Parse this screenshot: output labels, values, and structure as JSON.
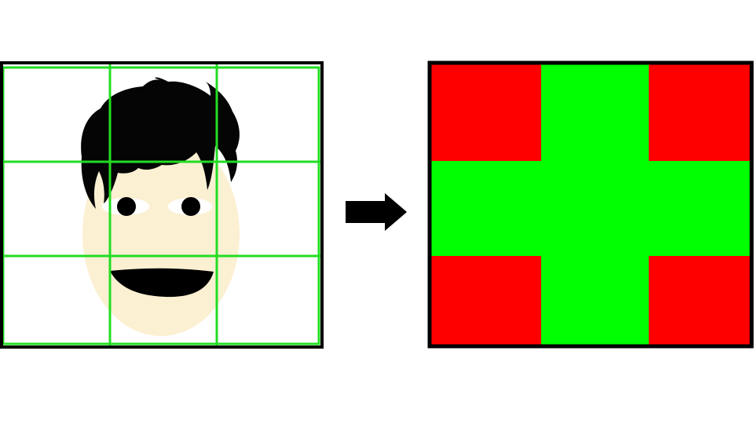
{
  "colors": {
    "background": "#ffffff",
    "frame_border": "#000000",
    "grid_line": "#22dd22",
    "hair": "#050505",
    "skin": "#fbf0d2",
    "eye_white": "#ffffff",
    "pupil": "#000000",
    "mouth": "#000000",
    "arrow": "#000000",
    "cell_red": "#ff0000",
    "cell_green": "#00ff00"
  },
  "icons": {
    "face_panel": "cartoon-face-icon",
    "arrow": "right-arrow-icon"
  },
  "grid": {
    "rows": 3,
    "cols": 3,
    "cells": [
      [
        "red",
        "green",
        "red"
      ],
      [
        "green",
        "green",
        "green"
      ],
      [
        "red",
        "green",
        "red"
      ]
    ]
  }
}
